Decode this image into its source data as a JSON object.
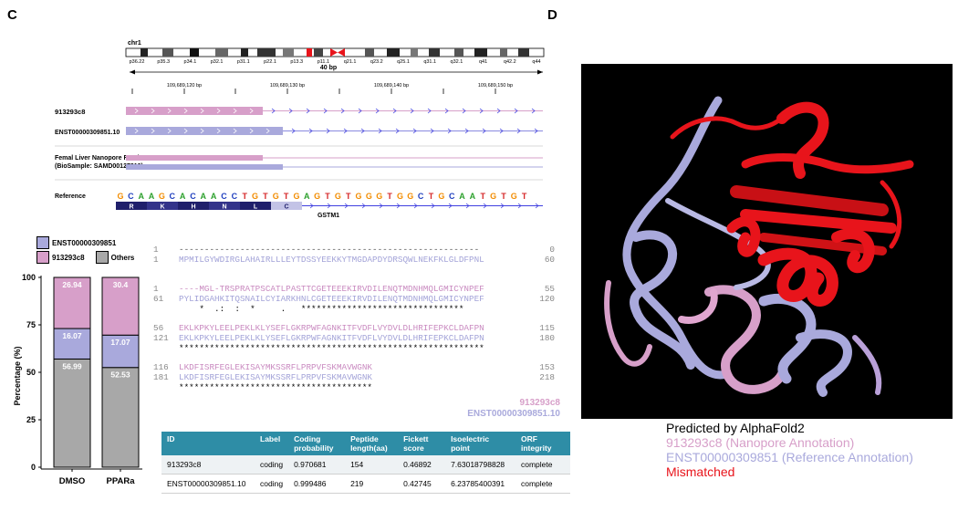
{
  "panel_c_label": "C",
  "panel_d_label": "D",
  "ideogram": {
    "chrom": "chr1",
    "bands": [
      "p36.22",
      "p35.3",
      "p34.1",
      "p32.1",
      "p31.1",
      "p22.1",
      "p13.3",
      "p11.1",
      "q21.1",
      "q23.2",
      "q25.1",
      "q31.1",
      "q32.1",
      "q41",
      "q42.2",
      "q44"
    ]
  },
  "scale_label": "40 bp",
  "coordinates": [
    "109,689,120 bp",
    "109,689,130 bp",
    "109,689,140 bp",
    "109,689,150 bp"
  ],
  "tracks": {
    "track1": "913293c8",
    "track2": "ENST00000309851.10",
    "reads_line1": "Femal Liver Nanopore Reads",
    "reads_line2": "(BioSample: SAMD00127219)",
    "reference": "Reference",
    "gene": "GSTM1"
  },
  "reference_seq": [
    "G",
    "C",
    "A",
    "A",
    "G",
    "C",
    "A",
    "C",
    "A",
    "A",
    "C",
    "C",
    "T",
    "G",
    "T",
    "G",
    "T",
    "G",
    "A",
    "G",
    "T",
    "G",
    "T",
    "G",
    "G",
    "G",
    "T",
    "G",
    "G",
    "C",
    "T",
    "G",
    "C",
    "A",
    "A",
    "T",
    "G",
    "T",
    "G",
    "T"
  ],
  "aa_boxes": [
    "R",
    "K",
    "H",
    "N",
    "L",
    "C"
  ],
  "base_colors": {
    "A": "#2ca02c",
    "C": "#1f3fbf",
    "G": "#f28c00",
    "T": "#d62728"
  },
  "colors": {
    "pink": "#d79fc9",
    "lavender": "#a9a9dc",
    "gray": "#a8a8a8",
    "red": "#e8141b"
  },
  "legend": {
    "enst": "ENST00000309851",
    "n913": "913293c8",
    "others": "Others"
  },
  "bar_chart": {
    "ylabel": "Percentage (%)",
    "yticks": [
      "0",
      "25",
      "50",
      "75",
      "100"
    ]
  },
  "chart_data": {
    "type": "bar",
    "stacked": true,
    "categories": [
      "DMSO",
      "PPARa"
    ],
    "series": [
      {
        "name": "Others",
        "values": [
          56.99,
          52.53
        ],
        "color": "#a8a8a8"
      },
      {
        "name": "ENST00000309851",
        "values": [
          16.07,
          17.07
        ],
        "color": "#a9a9dc"
      },
      {
        "name": "913293c8",
        "values": [
          26.94,
          30.4
        ],
        "color": "#d79fc9"
      }
    ],
    "ylabel": "Percentage (%)",
    "ylim": [
      0,
      100
    ],
    "grid": false,
    "legend": "top-left"
  },
  "alignment": {
    "b1": {
      "l1": {
        "start": "1",
        "seq": "-----------------------------------------------------------",
        "end": "0"
      },
      "l2": {
        "start": "1",
        "seq": "MPMILGYWDIRGLAHAIRLLLEYTDSSYEEKKYTMGDAPDYDRSQWLNEKFKLGLDFPNL",
        "end": "60"
      }
    },
    "b2": {
      "l1": {
        "start": "1",
        "seq": "----MGL-TRSPRATPSCATLPASTTCGETEEEKIRVDILENQTMDNHMQLGMICYNPEF",
        "end": "55"
      },
      "l2": {
        "start": "61",
        "seq": "PYLIDGAHKITQSNAILCYIARKHNLCGETEEEKIRVDILENQTMDNHMQLGMICYNPEF",
        "end": "120"
      },
      "stars": "    *  .:  :  *     .   ********************************"
    },
    "b3": {
      "l1": {
        "start": "56",
        "seq": "EKLKPKYLEELPEKLKLYSEFLGKRPWFAGNKITFVDFLVYDVLDLHRIFEPKCLDAFPN",
        "end": "115"
      },
      "l2": {
        "start": "121",
        "seq": "EKLKPKYLEELPEKLKLYSEFLGKRPWFAGNKITFVDFLVYDVLDLHRIFEPKCLDAFPN",
        "end": "180"
      },
      "stars": "************************************************************"
    },
    "b4": {
      "l1": {
        "start": "116",
        "seq": "LKDFISRFEGLEKISAYMKSSRFLPRPVFSKMAVWGNK",
        "end": "153"
      },
      "l2": {
        "start": "181",
        "seq": "LKDFISRFEGLEKISAYMKSSRFLPRPVFSKMAVWGNK",
        "end": "218"
      },
      "stars": "**************************************"
    },
    "name1": "913293c8",
    "name2": "ENST00000309851.10"
  },
  "table": {
    "headers": [
      "ID",
      "Label",
      "Coding probability",
      "Peptide length(aa)",
      "Fickett score",
      "Isoelectric point",
      "ORF integrity"
    ],
    "rows": [
      [
        "913293c8",
        "coding",
        "0.970681",
        "154",
        "0.46892",
        "7.63018798828",
        "complete"
      ],
      [
        "ENST00000309851.10",
        "coding",
        "0.999486",
        "219",
        "0.42745",
        "6.23785400391",
        "complete"
      ]
    ]
  },
  "structure_legend": {
    "title": "Predicted by AlphaFold2",
    "l1": "913293c8 (Nanopore Annotation)",
    "l2": "ENST00000309851 (Reference Annotation)",
    "l3": "Mismatched"
  }
}
